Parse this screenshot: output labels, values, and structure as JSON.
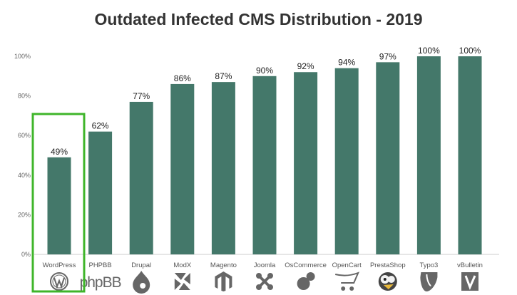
{
  "colors": {
    "bar": "#44786a",
    "highlight": "#3fb52a",
    "icon": "#666666",
    "axis": "#cccccc"
  },
  "chart_data": {
    "type": "bar",
    "title": "Outdated Infected CMS Distribution - 2019",
    "xlabel": "",
    "ylabel": "",
    "ylim": [
      0,
      100
    ],
    "yticks": [
      0,
      20,
      40,
      60,
      80,
      100
    ],
    "ytick_labels": [
      "0%",
      "20%",
      "40%",
      "60%",
      "80%",
      "100%"
    ],
    "grid": false,
    "legend": "none",
    "categories": [
      "WordPress",
      "PHPBB",
      "Drupal",
      "ModX",
      "Magento",
      "Joomla",
      "OsCommerce",
      "OpenCart",
      "PrestaShop",
      "Typo3",
      "vBulletin"
    ],
    "values": [
      49,
      62,
      77,
      86,
      87,
      90,
      92,
      94,
      97,
      100,
      100
    ],
    "data_labels": [
      "49%",
      "62%",
      "77%",
      "86%",
      "87%",
      "90%",
      "92%",
      "94%",
      "97%",
      "100%",
      "100%"
    ],
    "highlighted_category": "WordPress",
    "category_icons": [
      "wordpress-logo-icon",
      "phpbb-logo",
      "drupal-drop-icon",
      "modx-logo-icon",
      "magento-logo-icon",
      "joomla-logo-icon",
      "oscommerce-logo-icon",
      "opencart-cart-icon",
      "prestashop-puffin-icon",
      "typo3-logo-icon",
      "vbulletin-logo-icon"
    ],
    "icon_texts": {
      "phpbb": "phpBB"
    }
  }
}
